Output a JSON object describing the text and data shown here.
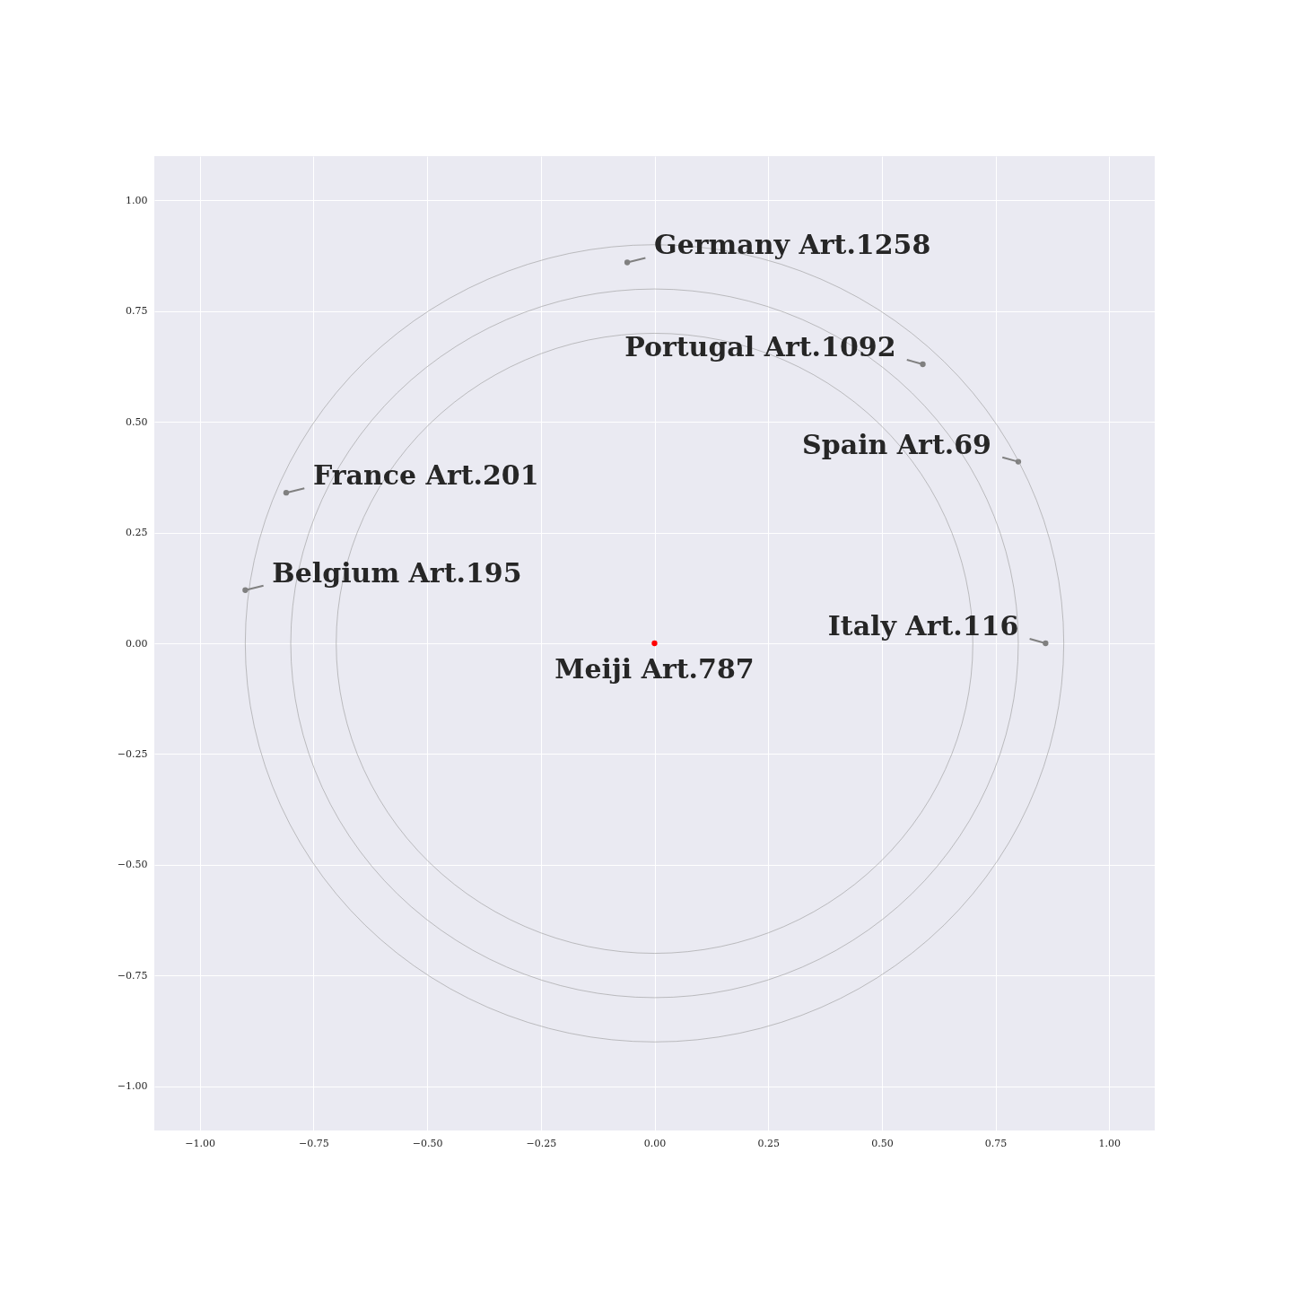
{
  "chart_data": {
    "type": "scatter",
    "xlim": [
      -1.1,
      1.1
    ],
    "ylim": [
      -1.1,
      1.1
    ],
    "xticks": [
      {
        "value": -1,
        "label": "−1.00"
      },
      {
        "value": -0.75,
        "label": "−0.75"
      },
      {
        "value": -0.5,
        "label": "−0.50"
      },
      {
        "value": -0.25,
        "label": "−0.25"
      },
      {
        "value": 0,
        "label": "0.00"
      },
      {
        "value": 0.25,
        "label": "0.25"
      },
      {
        "value": 0.5,
        "label": "0.50"
      },
      {
        "value": 0.75,
        "label": "0.75"
      },
      {
        "value": 1,
        "label": "1.00"
      }
    ],
    "yticks": [
      {
        "value": -1,
        "label": "−1.00"
      },
      {
        "value": -0.75,
        "label": "−0.75"
      },
      {
        "value": -0.5,
        "label": "−0.50"
      },
      {
        "value": -0.25,
        "label": "−0.25"
      },
      {
        "value": 0,
        "label": "0.00"
      },
      {
        "value": 0.25,
        "label": "0.25"
      },
      {
        "value": 0.5,
        "label": "0.50"
      },
      {
        "value": 0.75,
        "label": "0.75"
      },
      {
        "value": 1,
        "label": "1.00"
      }
    ],
    "grid": true,
    "marker": "circle",
    "series": [
      {
        "color": "#808080",
        "x": [
          -0.06,
          0.59,
          0.8,
          0.86,
          -0.81,
          -0.9
        ],
        "values": [
          0.86,
          0.63,
          0.41,
          0,
          0.34,
          0.12
        ]
      },
      {
        "color": "#ff0000",
        "x": [
          0
        ],
        "values": [
          0
        ]
      }
    ],
    "annotations": [
      {
        "text": "Germany Art.1258",
        "x": -0.06,
        "y": 0.86
      },
      {
        "text": "Portugal Art.1092",
        "x": 0.59,
        "y": 0.63
      },
      {
        "text": "Spain Art.69",
        "x": 0.8,
        "y": 0.41
      },
      {
        "text": "Italy Art.116",
        "x": 0.86,
        "y": 0
      },
      {
        "text": "France Art.201",
        "x": -0.81,
        "y": 0.34
      },
      {
        "text": "Belgium Art.195",
        "x": -0.9,
        "y": 0.12
      },
      {
        "text": "Meiji Art.787",
        "x": 0,
        "y": 0
      }
    ]
  }
}
